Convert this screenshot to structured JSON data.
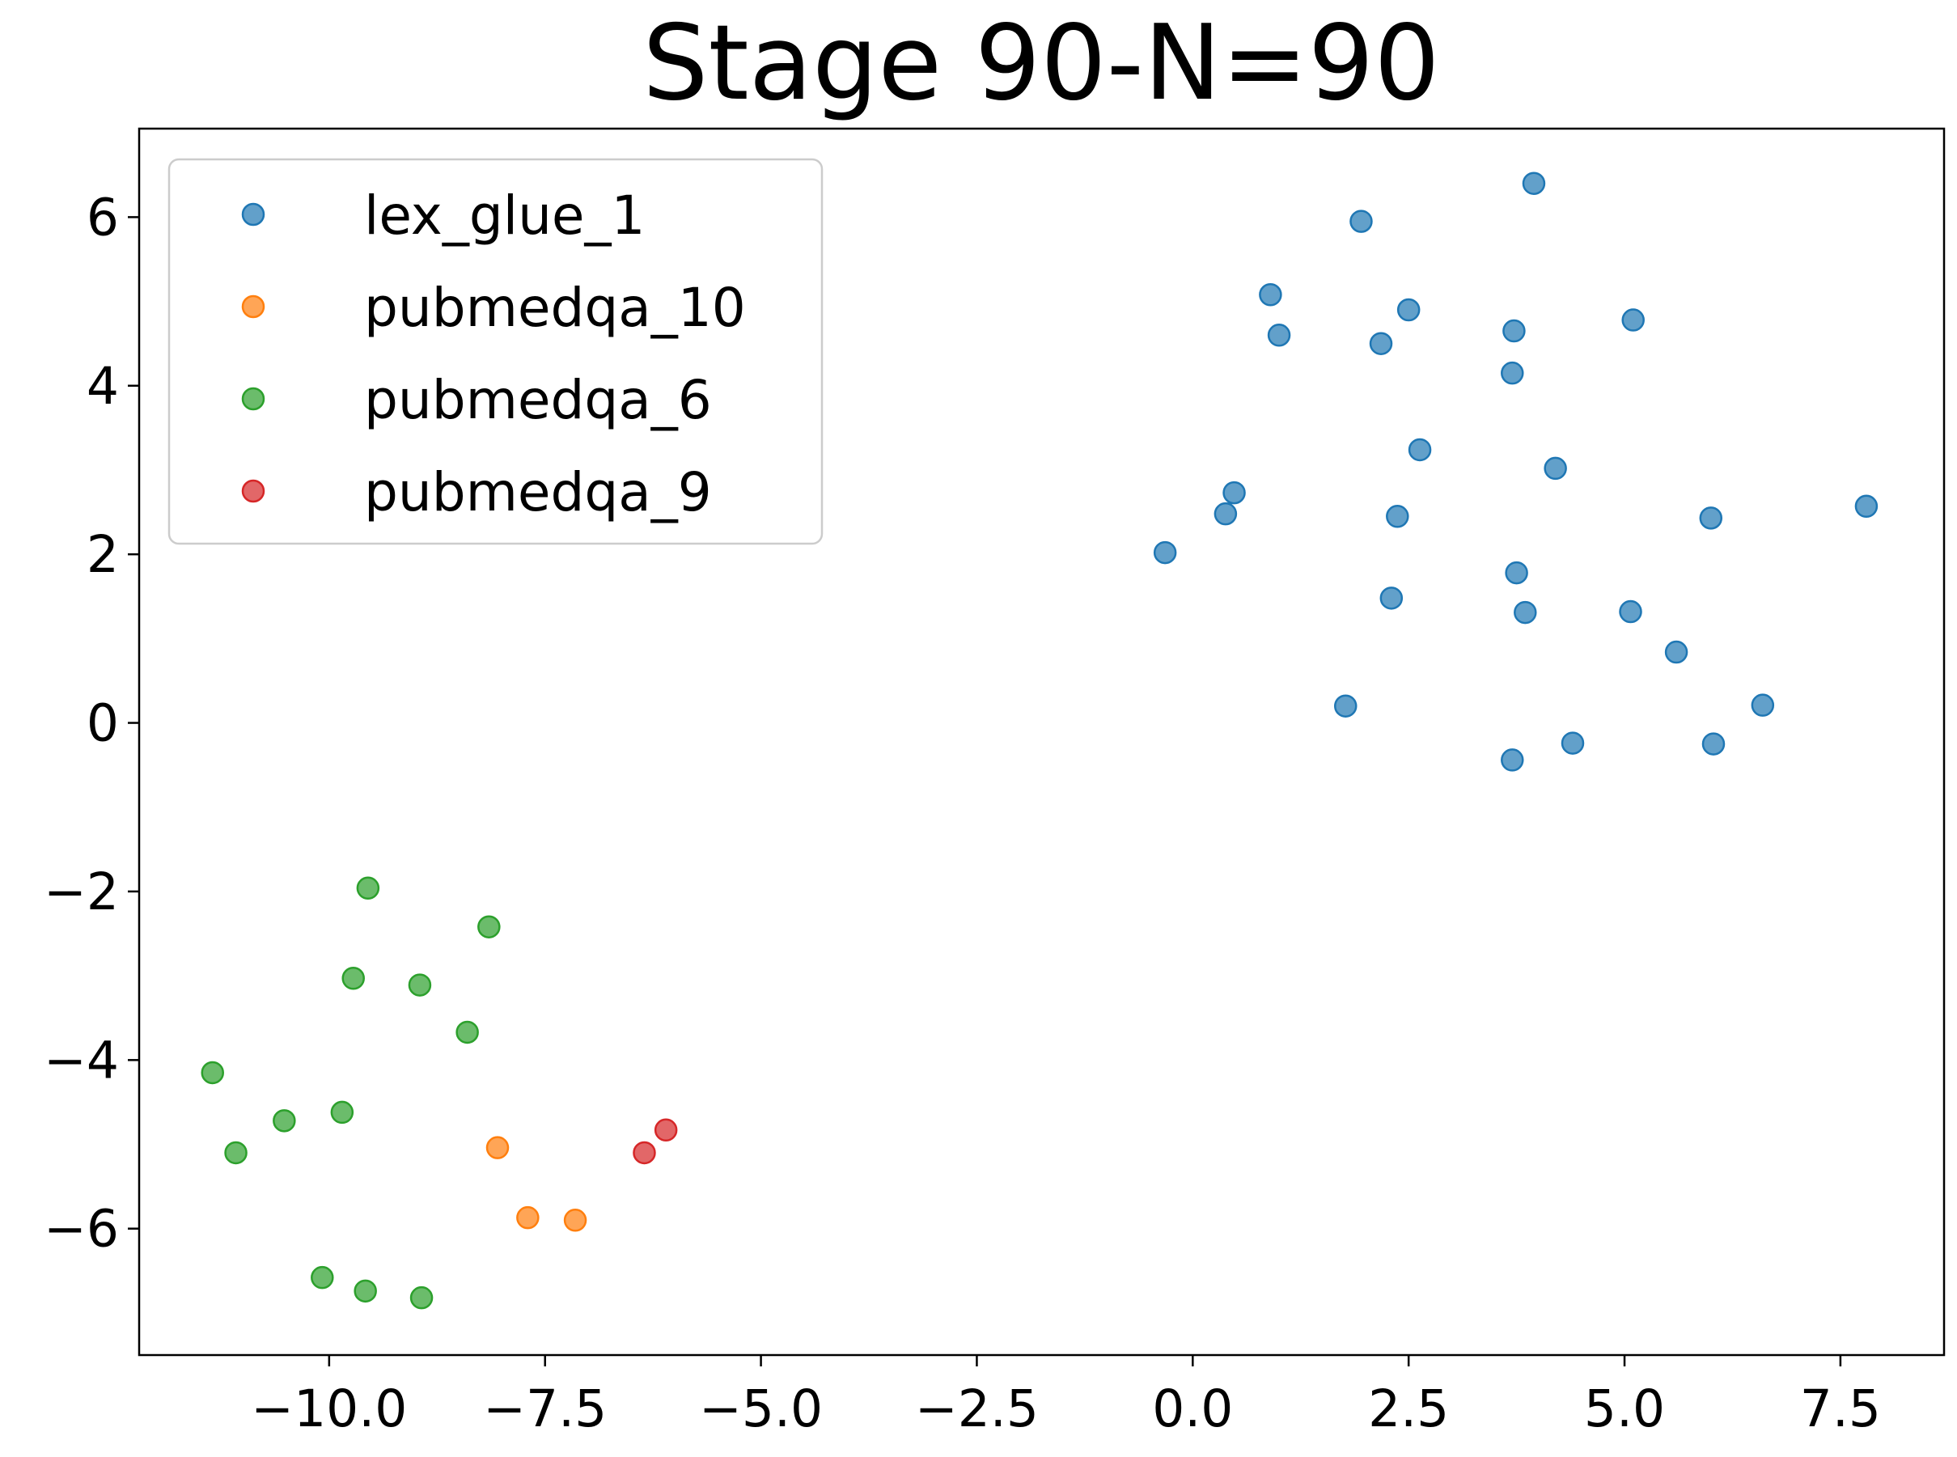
{
  "chart_data": {
    "type": "scatter",
    "title": "Stage 90-N=90",
    "xlabel": "",
    "ylabel": "",
    "xlim": [
      -12.2,
      8.7
    ],
    "ylim": [
      -7.5,
      7.05
    ],
    "xticks": [
      -10.0,
      -7.5,
      -5.0,
      -2.5,
      0.0,
      2.5,
      5.0,
      7.5
    ],
    "xtick_labels": [
      "−10.0",
      "−7.5",
      "−5.0",
      "−2.5",
      "0.0",
      "2.5",
      "5.0",
      "7.5"
    ],
    "yticks": [
      6,
      4,
      2,
      0,
      -2,
      -4,
      -6
    ],
    "ytick_labels": [
      "6",
      "4",
      "2",
      "0",
      "−2",
      "−4",
      "−6"
    ],
    "grid": false,
    "legend_position": "upper-left",
    "series": [
      {
        "name": "lex_glue_1",
        "color": "#1f77b4",
        "points": [
          [
            3.95,
            6.4
          ],
          [
            1.95,
            5.95
          ],
          [
            0.9,
            5.08
          ],
          [
            2.5,
            4.9
          ],
          [
            5.1,
            4.78
          ],
          [
            1.0,
            4.6
          ],
          [
            3.72,
            4.65
          ],
          [
            2.18,
            4.5
          ],
          [
            3.7,
            4.15
          ],
          [
            2.63,
            3.24
          ],
          [
            4.2,
            3.02
          ],
          [
            0.48,
            2.73
          ],
          [
            0.38,
            2.48
          ],
          [
            2.37,
            2.45
          ],
          [
            6.0,
            2.43
          ],
          [
            7.8,
            2.57
          ],
          [
            -0.32,
            2.02
          ],
          [
            3.75,
            1.78
          ],
          [
            2.3,
            1.48
          ],
          [
            3.85,
            1.31
          ],
          [
            5.07,
            1.32
          ],
          [
            5.6,
            0.84
          ],
          [
            1.77,
            0.2
          ],
          [
            6.6,
            0.21
          ],
          [
            3.7,
            -0.44
          ],
          [
            4.4,
            -0.24
          ],
          [
            6.03,
            -0.25
          ]
        ]
      },
      {
        "name": "pubmedqa_10",
        "color": "#ff7f0e",
        "points": [
          [
            -8.05,
            -5.04
          ],
          [
            -7.7,
            -5.87
          ],
          [
            -7.15,
            -5.9
          ]
        ]
      },
      {
        "name": "pubmedqa_6",
        "color": "#2ca02c",
        "points": [
          [
            -9.55,
            -1.96
          ],
          [
            -8.15,
            -2.42
          ],
          [
            -9.72,
            -3.03
          ],
          [
            -8.95,
            -3.11
          ],
          [
            -8.4,
            -3.67
          ],
          [
            -11.35,
            -4.15
          ],
          [
            -9.85,
            -4.62
          ],
          [
            -10.52,
            -4.72
          ],
          [
            -11.08,
            -5.1
          ],
          [
            -10.08,
            -6.58
          ],
          [
            -9.58,
            -6.74
          ],
          [
            -8.93,
            -6.82
          ]
        ]
      },
      {
        "name": "pubmedqa_9",
        "color": "#d62728",
        "points": [
          [
            -6.1,
            -4.83
          ],
          [
            -6.35,
            -5.1
          ]
        ]
      }
    ]
  }
}
